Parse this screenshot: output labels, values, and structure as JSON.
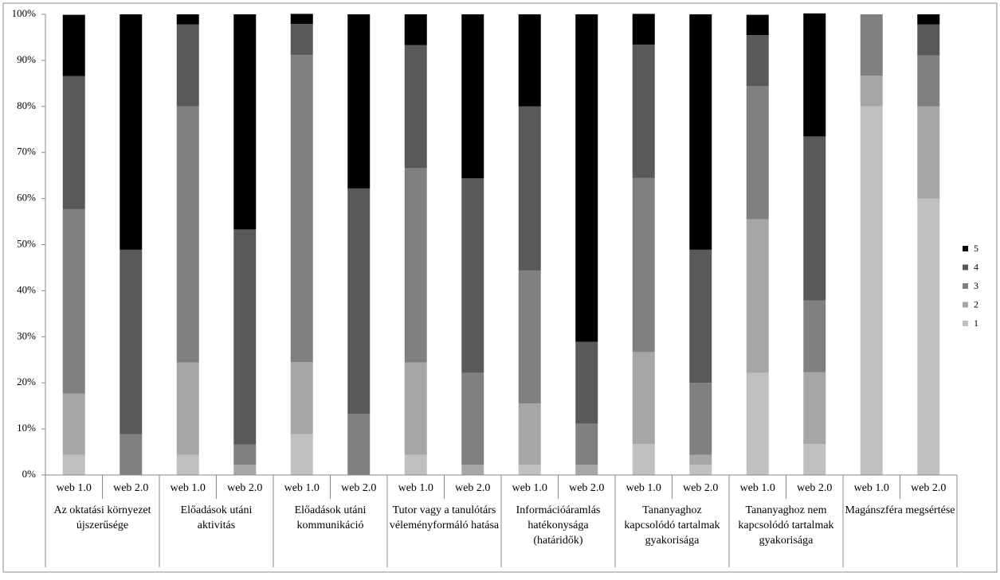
{
  "chart_data": {
    "type": "stacked_bar",
    "groups": [
      "Az oktatási környezet újszerűsége",
      "Előadások utáni aktivitás",
      "Előadások utáni kommunikáció",
      "Tutor vagy a tanulótárs véleményformáló hatása",
      "Információáramlás hatékonysága (határidők)",
      "Tananyaghoz kapcsolódó tartalmak gyakorisága",
      "Tananyaghoz nem kapcsolódó tartalmak gyakorisága",
      "Magánszféra megsértése"
    ],
    "subcategories": [
      "web 1.0",
      "web 2.0"
    ],
    "series": [
      {
        "name": "1",
        "color": "#c0c0c0",
        "values": [
          4.4,
          0,
          4.4,
          0,
          8.9,
          0,
          4.4,
          0,
          2.2,
          0,
          6.7,
          2.2,
          22.2,
          6.7,
          80,
          60
        ]
      },
      {
        "name": "2",
        "color": "#a6a6a6",
        "values": [
          13.3,
          0,
          20,
          2.2,
          15.6,
          0,
          20,
          2.2,
          13.3,
          2.2,
          20,
          2.2,
          33.3,
          15.6,
          6.7,
          20
        ]
      },
      {
        "name": "3",
        "color": "#808080",
        "values": [
          40,
          8.9,
          55.6,
          4.4,
          66.7,
          13.3,
          42.2,
          20,
          28.9,
          8.9,
          37.8,
          15.6,
          28.9,
          15.6,
          13.3,
          11.1
        ]
      },
      {
        "name": "4",
        "color": "#595959",
        "values": [
          28.9,
          40,
          17.8,
          46.7,
          6.7,
          48.9,
          26.7,
          42.2,
          35.6,
          17.8,
          28.9,
          28.9,
          11.1,
          35.6,
          0,
          6.7
        ]
      },
      {
        "name": "5",
        "color": "#000000",
        "values": [
          13.3,
          51.1,
          2.2,
          46.7,
          2.2,
          37.8,
          6.7,
          35.6,
          20,
          71.1,
          6.7,
          51.1,
          4.4,
          26.7,
          0,
          2.2
        ]
      }
    ],
    "ylim": [
      0,
      100
    ],
    "yticks": [
      {
        "value": 0,
        "label": "0%"
      },
      {
        "value": 10,
        "label": "10%"
      },
      {
        "value": 20,
        "label": "20%"
      },
      {
        "value": 30,
        "label": "30%"
      },
      {
        "value": 40,
        "label": "40%"
      },
      {
        "value": 50,
        "label": "50%"
      },
      {
        "value": 60,
        "label": "60%"
      },
      {
        "value": 70,
        "label": "70%"
      },
      {
        "value": 80,
        "label": "80%"
      },
      {
        "value": 90,
        "label": "90%"
      },
      {
        "value": 100,
        "label": "100%"
      }
    ],
    "legend": "right"
  }
}
